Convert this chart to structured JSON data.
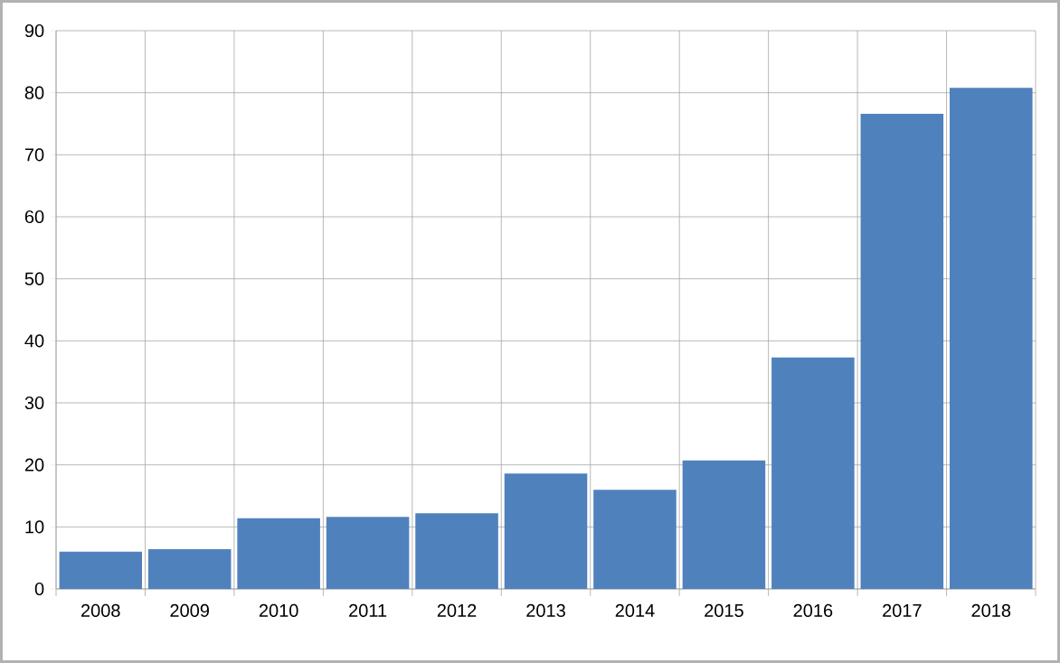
{
  "chart_data": {
    "type": "bar",
    "categories": [
      "2008",
      "2009",
      "2010",
      "2011",
      "2012",
      "2013",
      "2014",
      "2015",
      "2016",
      "2017",
      "2018"
    ],
    "values": [
      6.0,
      6.4,
      11.4,
      11.6,
      12.2,
      18.6,
      16.0,
      20.7,
      37.3,
      76.6,
      80.8
    ],
    "color": "#4f81bd",
    "ylim": [
      0,
      90
    ],
    "yticks": [
      0,
      10,
      20,
      30,
      40,
      50,
      60,
      70,
      80,
      90
    ],
    "grid": true
  }
}
